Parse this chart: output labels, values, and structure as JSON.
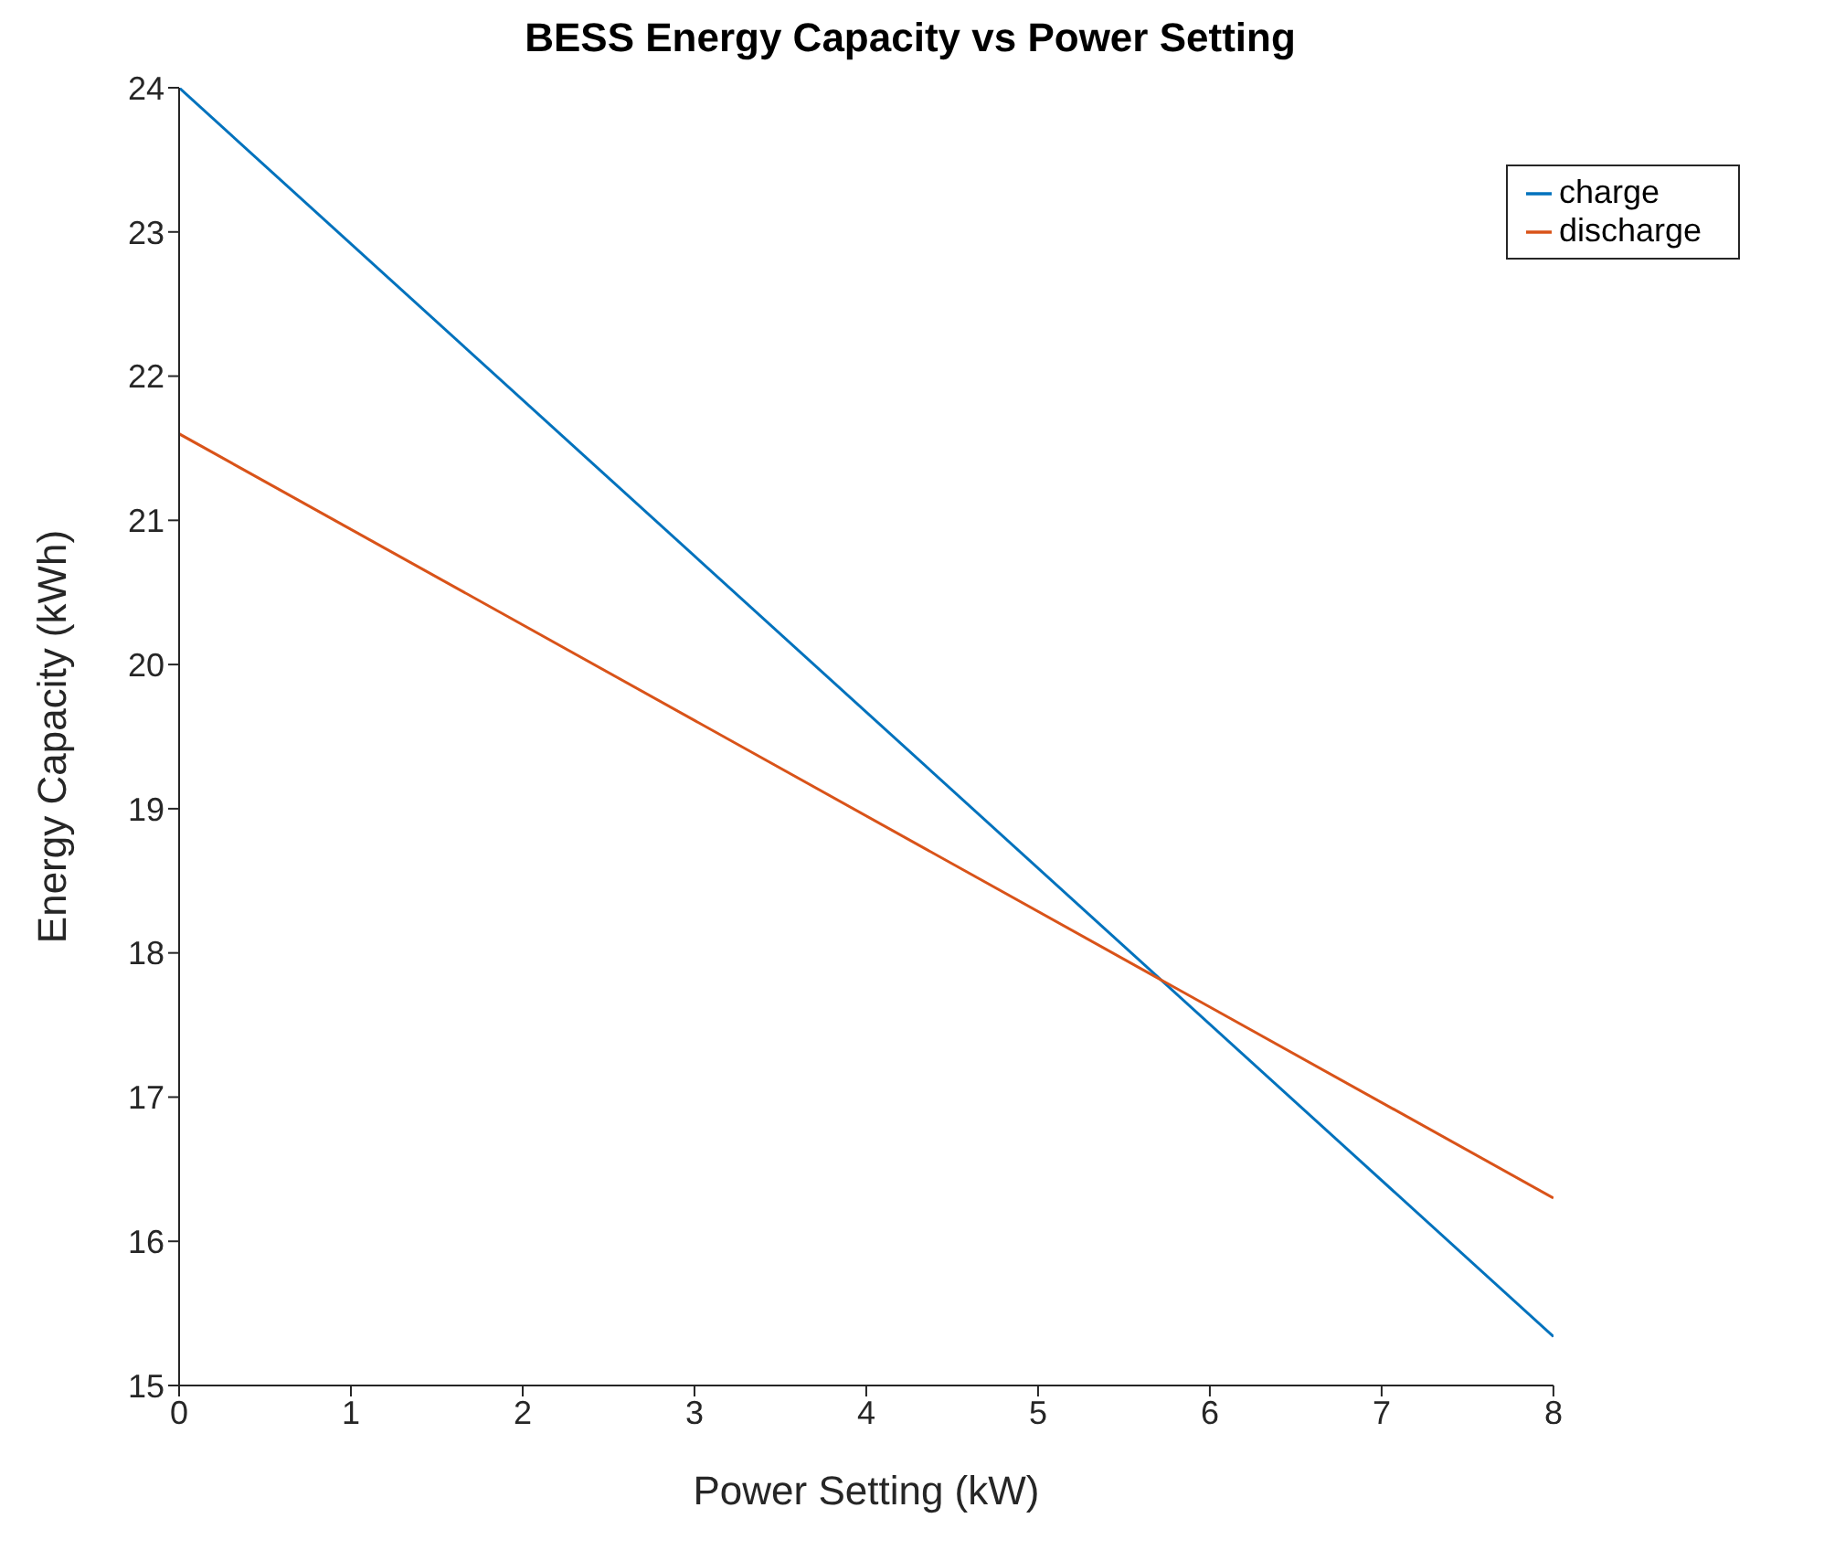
{
  "chart_data": {
    "type": "line",
    "title": "BESS Energy Capacity vs Power Setting",
    "xlabel": "Power Setting (kW)",
    "ylabel": "Energy Capacity (kWh)",
    "x": [
      0,
      8
    ],
    "series": [
      {
        "name": "charge",
        "color": "#0072bd",
        "values": [
          24,
          15.34
        ]
      },
      {
        "name": "discharge",
        "color": "#d95319",
        "values": [
          21.6,
          16.3
        ]
      }
    ],
    "xlim": [
      0,
      8
    ],
    "xticks": [
      0,
      1,
      2,
      3,
      4,
      5,
      6,
      7,
      8
    ],
    "ylim": [
      15,
      24
    ],
    "yticks": [
      15,
      16,
      17,
      18,
      19,
      20,
      21,
      22,
      23,
      24
    ],
    "grid": false,
    "legend": "top right",
    "marker": "none",
    "line_style": "solid"
  }
}
